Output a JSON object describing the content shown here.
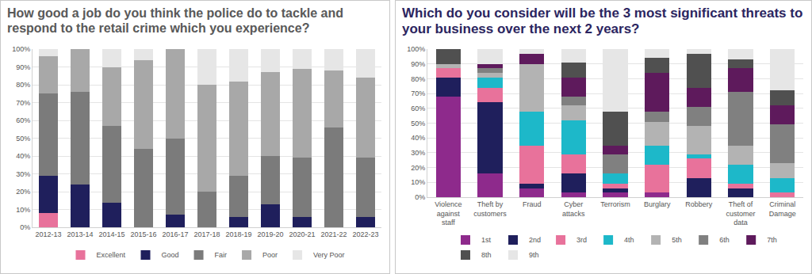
{
  "chart_data": [
    {
      "type": "bar",
      "stacked": true,
      "grid": true,
      "legend": "bottom",
      "title": "How good a job do you think the police do to tackle and respond to the retail crime which you experience?",
      "categories": [
        "2012-13",
        "2013-14",
        "2014-15",
        "2015-16",
        "2016-17",
        "2017-18",
        "2018-19",
        "2019-20",
        "2020-21",
        "2021-22",
        "2022-23"
      ],
      "series": [
        {
          "name": "Excellent",
          "color": "#e8729b",
          "values": [
            8,
            0,
            0,
            0,
            0,
            0,
            0,
            0,
            0,
            0,
            0
          ]
        },
        {
          "name": "Good",
          "color": "#1f1f5c",
          "values": [
            21,
            24,
            14,
            0,
            7,
            0,
            6,
            13,
            6,
            0,
            6
          ]
        },
        {
          "name": "Fair",
          "color": "#7b7b7b",
          "values": [
            46,
            52,
            43,
            44,
            43,
            20,
            23,
            27,
            33,
            56,
            33
          ]
        },
        {
          "name": "Poor",
          "color": "#a8a8a8",
          "values": [
            21,
            24,
            33,
            50,
            50,
            60,
            53,
            47,
            50,
            32,
            45
          ]
        },
        {
          "name": "Very Poor",
          "color": "#e6e6e6",
          "values": [
            4,
            0,
            10,
            6,
            0,
            20,
            18,
            13,
            11,
            12,
            16
          ]
        }
      ],
      "ylim": [
        0,
        100
      ],
      "yticks": [
        {
          "value": 0,
          "label": "0%"
        },
        {
          "value": 10,
          "label": "10%"
        },
        {
          "value": 20,
          "label": "20%"
        },
        {
          "value": 30,
          "label": "30%"
        },
        {
          "value": 40,
          "label": "40%"
        },
        {
          "value": 50,
          "label": "50%"
        },
        {
          "value": 60,
          "label": "60%"
        },
        {
          "value": 70,
          "label": "70%"
        },
        {
          "value": 80,
          "label": "80%"
        },
        {
          "value": 90,
          "label": "90%"
        },
        {
          "value": 100,
          "label": "100%"
        }
      ]
    },
    {
      "type": "bar",
      "stacked": true,
      "grid": true,
      "legend": "bottom",
      "title": "Which do you consider will be the 3 most significant threats to your business over the next 2 years?",
      "categories": [
        "Violence against staff",
        "Theft by customers",
        "Fraud",
        "Cyber attacks",
        "Terrorism",
        "Burglary",
        "Robbery",
        "Theft of customer data",
        "Criminal Damage"
      ],
      "series": [
        {
          "name": "1st",
          "color": "#8e2a8c",
          "values": [
            68,
            16,
            6,
            3,
            3,
            3,
            0,
            0,
            0
          ]
        },
        {
          "name": "2nd",
          "color": "#1f1f5c",
          "values": [
            13,
            48,
            3,
            13,
            3,
            0,
            13,
            6,
            0
          ]
        },
        {
          "name": "3rd",
          "color": "#e8729b",
          "values": [
            6,
            10,
            26,
            13,
            3,
            19,
            13,
            3,
            3
          ]
        },
        {
          "name": "4th",
          "color": "#1db8c9",
          "values": [
            0,
            7,
            23,
            23,
            7,
            13,
            3,
            13,
            10
          ]
        },
        {
          "name": "5th",
          "color": "#b3b3b3",
          "values": [
            3,
            3,
            32,
            10,
            0,
            16,
            19,
            13,
            10
          ]
        },
        {
          "name": "6th",
          "color": "#808080",
          "values": [
            0,
            3,
            0,
            6,
            13,
            7,
            13,
            36,
            26
          ]
        },
        {
          "name": "7th",
          "color": "#5e1a5c",
          "values": [
            0,
            3,
            7,
            13,
            6,
            26,
            13,
            16,
            13
          ]
        },
        {
          "name": "8th",
          "color": "#505050",
          "values": [
            10,
            0,
            0,
            10,
            23,
            10,
            23,
            6,
            10
          ]
        },
        {
          "name": "9th",
          "color": "#e6e6e6",
          "values": [
            0,
            10,
            3,
            9,
            42,
            6,
            3,
            7,
            28
          ]
        }
      ],
      "ylim": [
        0,
        100
      ],
      "yticks": [
        {
          "value": 0,
          "label": "0%"
        },
        {
          "value": 10,
          "label": "10%"
        },
        {
          "value": 20,
          "label": "20%"
        },
        {
          "value": 30,
          "label": "30%"
        },
        {
          "value": 40,
          "label": "40%"
        },
        {
          "value": 50,
          "label": "50%"
        },
        {
          "value": 60,
          "label": "60%"
        },
        {
          "value": 70,
          "label": "70%"
        },
        {
          "value": 80,
          "label": "80%"
        },
        {
          "value": 90,
          "label": "90%"
        },
        {
          "value": 100,
          "label": "100%"
        }
      ]
    }
  ]
}
